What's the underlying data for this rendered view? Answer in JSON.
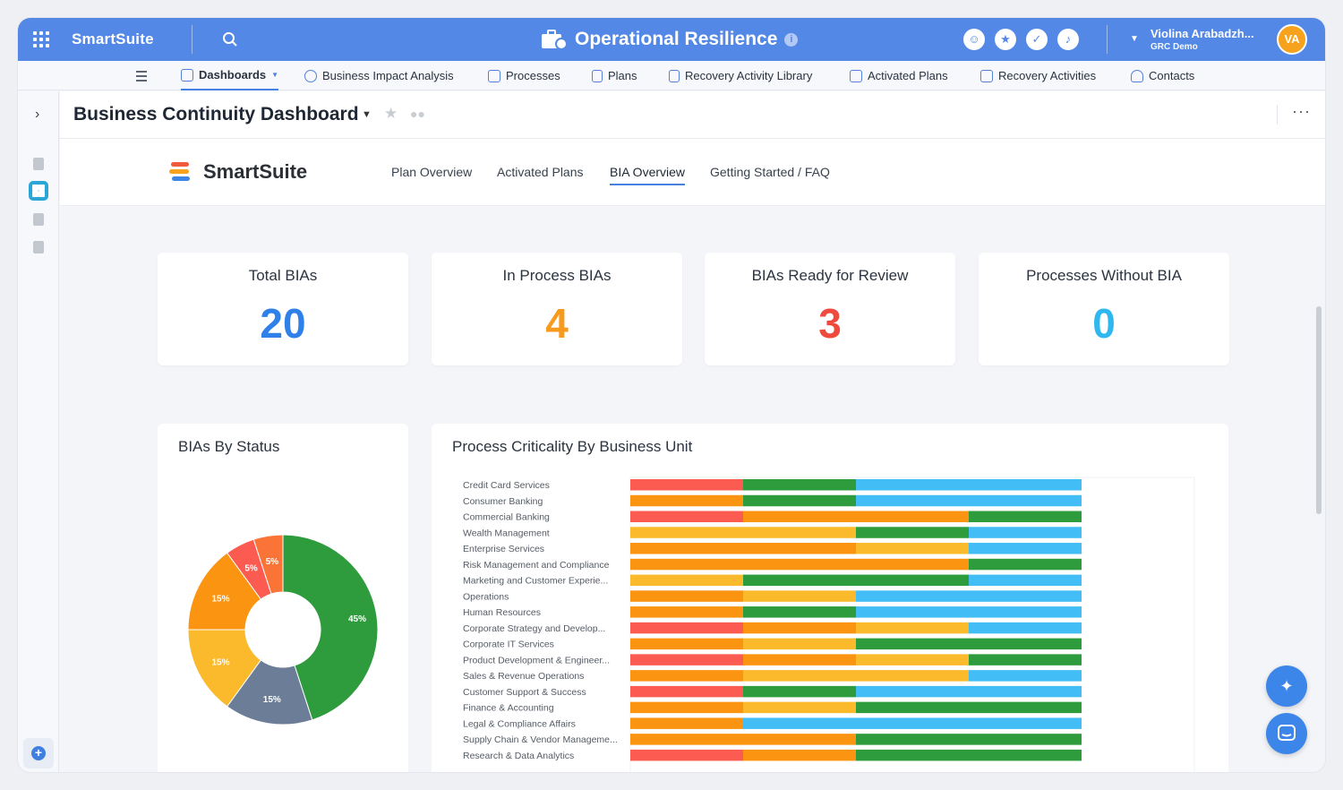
{
  "topbar": {
    "brand": "SmartSuite",
    "app_title": "Operational Resilience",
    "info": "i",
    "user_name": "Violina Arabadzh...",
    "user_org": "GRC Demo",
    "avatar_initials": "VA"
  },
  "nav": {
    "items": [
      {
        "label": "Dashboards",
        "icon": "dashboard-icon"
      },
      {
        "label": "Business Impact Analysis",
        "icon": "refresh-icon"
      },
      {
        "label": "Processes",
        "icon": "process-icon"
      },
      {
        "label": "Plans",
        "icon": "plan-icon"
      },
      {
        "label": "Recovery Activity Library",
        "icon": "library-icon"
      },
      {
        "label": "Activated Plans",
        "icon": "activated-icon"
      },
      {
        "label": "Recovery Activities",
        "icon": "activities-icon"
      },
      {
        "label": "Contacts",
        "icon": "person-icon"
      }
    ]
  },
  "page": {
    "title": "Business Continuity Dashboard"
  },
  "dashboard": {
    "logo_text": "SmartSuite",
    "tabs": [
      "Plan Overview",
      "Activated Plans",
      "BIA Overview",
      "Getting Started / FAQ"
    ],
    "active_tab": "BIA Overview"
  },
  "kpis": [
    {
      "title": "Total BIAs",
      "value": "20",
      "color": "#2f80e8"
    },
    {
      "title": "In Process BIAs",
      "value": "4",
      "color": "#f79a1e"
    },
    {
      "title": "BIAs Ready for Review",
      "value": "3",
      "color": "#ee4b3e"
    },
    {
      "title": "Processes Without BIA",
      "value": "0",
      "color": "#2fb8f0"
    }
  ],
  "cards": {
    "status_title": "BIAs By Status",
    "criticality_title": "Process Criticality By Business Unit"
  },
  "colors": {
    "red": "#fb5b50",
    "green": "#2e9c3c",
    "blue": "#43bdf5",
    "orange": "#fb9411",
    "yellow": "#fbb92c",
    "slate": "#6b7d97",
    "accent": "#5388e6"
  },
  "chart_data": [
    {
      "type": "pie",
      "title": "BIAs By Status",
      "slices": [
        {
          "label": "45%",
          "value": 45,
          "color": "#2e9c3c"
        },
        {
          "label": "15%",
          "value": 15,
          "color": "#6b7d97"
        },
        {
          "label": "15%",
          "value": 15,
          "color": "#fbb92c"
        },
        {
          "label": "15%",
          "value": 15,
          "color": "#fb9411"
        },
        {
          "label": "5%",
          "value": 5,
          "color": "#fb5b50"
        },
        {
          "label": "5%",
          "value": 5,
          "color": "#fb7437"
        }
      ]
    },
    {
      "type": "bar",
      "orientation": "horizontal",
      "stacked": true,
      "title": "Process Criticality By Business Unit",
      "segment_units": 20,
      "categories": [
        {
          "label": "Credit Card Services",
          "segments": [
            [
              "red",
              1
            ],
            [
              "green",
              1
            ],
            [
              "blue",
              2
            ]
          ]
        },
        {
          "label": "Consumer Banking",
          "segments": [
            [
              "orange",
              1
            ],
            [
              "green",
              1
            ],
            [
              "blue",
              2
            ]
          ]
        },
        {
          "label": "Commercial Banking",
          "segments": [
            [
              "red",
              1
            ],
            [
              "orange",
              2
            ],
            [
              "green",
              1
            ]
          ]
        },
        {
          "label": "Wealth Management",
          "segments": [
            [
              "yellow",
              2
            ],
            [
              "green",
              1
            ],
            [
              "blue",
              1
            ]
          ]
        },
        {
          "label": "Enterprise Services",
          "segments": [
            [
              "orange",
              2
            ],
            [
              "yellow",
              1
            ],
            [
              "blue",
              1
            ]
          ]
        },
        {
          "label": "Risk Management and Compliance",
          "segments": [
            [
              "orange",
              3
            ],
            [
              "green",
              1
            ]
          ]
        },
        {
          "label": "Marketing and Customer Experie...",
          "segments": [
            [
              "yellow",
              1
            ],
            [
              "green",
              2
            ],
            [
              "blue",
              1
            ]
          ]
        },
        {
          "label": "Operations",
          "segments": [
            [
              "orange",
              1
            ],
            [
              "yellow",
              1
            ],
            [
              "blue",
              2
            ]
          ]
        },
        {
          "label": "Human Resources",
          "segments": [
            [
              "orange",
              1
            ],
            [
              "green",
              1
            ],
            [
              "blue",
              2
            ]
          ]
        },
        {
          "label": "Corporate Strategy and Develop...",
          "segments": [
            [
              "red",
              1
            ],
            [
              "orange",
              1
            ],
            [
              "yellow",
              1
            ],
            [
              "blue",
              1
            ]
          ]
        },
        {
          "label": "Corporate IT Services",
          "segments": [
            [
              "orange",
              1
            ],
            [
              "yellow",
              1
            ],
            [
              "green",
              2
            ]
          ]
        },
        {
          "label": "Product Development & Engineer...",
          "segments": [
            [
              "red",
              1
            ],
            [
              "orange",
              1
            ],
            [
              "yellow",
              1
            ],
            [
              "green",
              1
            ]
          ]
        },
        {
          "label": "Sales & Revenue Operations",
          "segments": [
            [
              "orange",
              1
            ],
            [
              "yellow",
              2
            ],
            [
              "blue",
              1
            ]
          ]
        },
        {
          "label": "Customer Support & Success",
          "segments": [
            [
              "red",
              1
            ],
            [
              "green",
              1
            ],
            [
              "blue",
              2
            ]
          ]
        },
        {
          "label": "Finance & Accounting",
          "segments": [
            [
              "orange",
              1
            ],
            [
              "yellow",
              1
            ],
            [
              "green",
              2
            ]
          ]
        },
        {
          "label": "Legal & Compliance Affairs",
          "segments": [
            [
              "orange",
              1
            ],
            [
              "blue",
              3
            ]
          ]
        },
        {
          "label": "Supply Chain & Vendor Manageme...",
          "segments": [
            [
              "orange",
              2
            ],
            [
              "green",
              2
            ]
          ]
        },
        {
          "label": "Research & Data Analytics",
          "segments": [
            [
              "red",
              1
            ],
            [
              "orange",
              1
            ],
            [
              "green",
              2
            ]
          ]
        }
      ]
    }
  ]
}
